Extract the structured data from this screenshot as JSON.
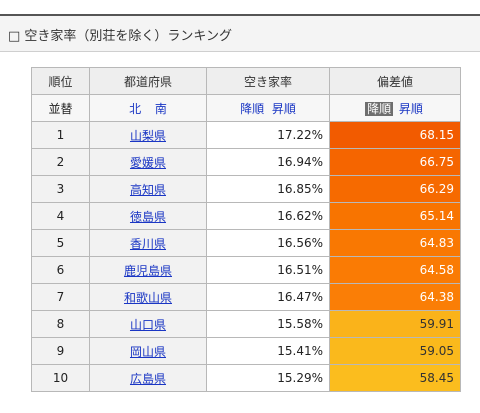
{
  "header": {
    "title": "□ 空き家率（別荘を除く）ランキング"
  },
  "columns": [
    "順位",
    "都道府県",
    "空き家率",
    "偏差値"
  ],
  "sort_row": {
    "label": "並替",
    "pref_north": "北",
    "pref_south": "南",
    "rate_desc": "降順",
    "rate_asc": "昇順",
    "dev_desc": "降順",
    "dev_asc": "昇順"
  },
  "rows": [
    {
      "rank": "1",
      "pref": "山梨県",
      "rate": "17.22%",
      "dev": "68.15",
      "color": "#f25b00"
    },
    {
      "rank": "2",
      "pref": "愛媛県",
      "rate": "16.94%",
      "dev": "66.75",
      "color": "#f56500"
    },
    {
      "rank": "3",
      "pref": "高知県",
      "rate": "16.85%",
      "dev": "66.29",
      "color": "#f66a00"
    },
    {
      "rank": "4",
      "pref": "徳島県",
      "rate": "16.62%",
      "dev": "65.14",
      "color": "#f87400"
    },
    {
      "rank": "5",
      "pref": "香川県",
      "rate": "16.56%",
      "dev": "64.83",
      "color": "#f97802"
    },
    {
      "rank": "6",
      "pref": "鹿児島県",
      "rate": "16.51%",
      "dev": "64.58",
      "color": "#fa7b04"
    },
    {
      "rank": "7",
      "pref": "和歌山県",
      "rate": "16.47%",
      "dev": "64.38",
      "color": "#fa7e06"
    },
    {
      "rank": "8",
      "pref": "山口県",
      "rate": "15.58%",
      "dev": "59.91",
      "color": "#fab31a",
      "light": true
    },
    {
      "rank": "9",
      "pref": "岡山県",
      "rate": "15.41%",
      "dev": "59.05",
      "color": "#fab91c",
      "light": true
    },
    {
      "rank": "10",
      "pref": "広島県",
      "rate": "15.29%",
      "dev": "58.45",
      "color": "#fbbd1e",
      "light": true
    }
  ]
}
